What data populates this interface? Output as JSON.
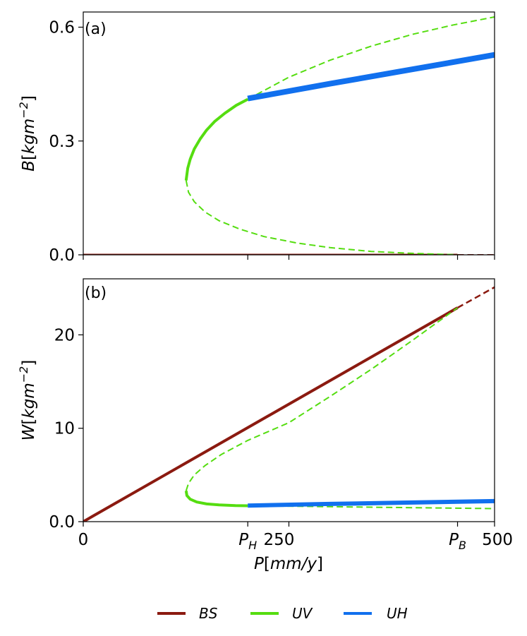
{
  "colors": {
    "BS": "#8b1a10",
    "UV": "#55dd10",
    "UH": "#1170ee"
  },
  "legend": [
    {
      "key": "BS",
      "label": "BS"
    },
    {
      "key": "UV",
      "label": "UV"
    },
    {
      "key": "UH",
      "label": "UH"
    }
  ],
  "chart_data": [
    {
      "type": "line",
      "panel_tag": "(a)",
      "ylabel_var": "B",
      "ylabel_unit": "kgm",
      "ylabel_exp": "−2",
      "xlim": [
        0,
        500
      ],
      "ylim": [
        0,
        0.64
      ],
      "yticks": [
        {
          "value": 0.0,
          "label": "0.0"
        },
        {
          "value": 0.3,
          "label": "0.3"
        },
        {
          "value": 0.6,
          "label": "0.6"
        }
      ],
      "show_xticklabels": false,
      "series": [
        {
          "name": "BS",
          "style": "solid",
          "width": 3,
          "x": [
            0,
            455
          ],
          "y": [
            0,
            0
          ]
        },
        {
          "name": "BS",
          "style": "dashed",
          "width": 2,
          "x": [
            455,
            500
          ],
          "y": [
            0,
            0
          ]
        },
        {
          "name": "UV",
          "style": "solid",
          "width": 4,
          "x": [
            125,
            127,
            130,
            135,
            142,
            150,
            160,
            172,
            186,
            200
          ],
          "y": [
            0.196,
            0.228,
            0.252,
            0.279,
            0.305,
            0.329,
            0.352,
            0.373,
            0.394,
            0.41
          ]
        },
        {
          "name": "UV",
          "style": "dashed",
          "width": 2,
          "x": [
            125,
            128,
            135,
            148,
            165,
            190,
            220,
            260,
            300,
            350,
            400,
            455
          ],
          "y": [
            0.196,
            0.165,
            0.14,
            0.113,
            0.09,
            0.068,
            0.048,
            0.031,
            0.019,
            0.009,
            0.004,
            0.0
          ]
        },
        {
          "name": "UV",
          "style": "dashed",
          "width": 2,
          "x": [
            200,
            250,
            300,
            350,
            400,
            450,
            500
          ],
          "y": [
            0.41,
            0.468,
            0.513,
            0.55,
            0.581,
            0.606,
            0.627
          ]
        },
        {
          "name": "UH",
          "style": "solid",
          "width": 8,
          "x": [
            200,
            300,
            400,
            500
          ],
          "y": [
            0.412,
            0.451,
            0.489,
            0.527
          ]
        }
      ]
    },
    {
      "type": "line",
      "panel_tag": "(b)",
      "ylabel_var": "W",
      "ylabel_unit": "kgm",
      "ylabel_exp": "−2",
      "xlim": [
        0,
        500
      ],
      "ylim": [
        0,
        26
      ],
      "yticks": [
        {
          "value": 0,
          "label": "0.0"
        },
        {
          "value": 10,
          "label": "10"
        },
        {
          "value": 20,
          "label": "20"
        }
      ],
      "xticks": [
        {
          "value": 0,
          "label": "0"
        },
        {
          "value": 200,
          "label": "P_H"
        },
        {
          "value": 250,
          "label": "250"
        },
        {
          "value": 455,
          "label": "P_B"
        },
        {
          "value": 500,
          "label": "500"
        }
      ],
      "xlabel_var": "P",
      "xlabel_unit": "mm/y",
      "series": [
        {
          "name": "BS",
          "style": "solid",
          "width": 4,
          "x": [
            0,
            455
          ],
          "y": [
            0,
            22.9
          ]
        },
        {
          "name": "BS",
          "style": "dashed",
          "width": 2.5,
          "x": [
            455,
            500
          ],
          "y": [
            22.9,
            25.1
          ]
        },
        {
          "name": "UV",
          "style": "solid",
          "width": 4,
          "x": [
            125,
            126,
            130,
            138,
            150,
            165,
            185,
            200
          ],
          "y": [
            3.3,
            2.8,
            2.4,
            2.1,
            1.9,
            1.8,
            1.72,
            1.7
          ]
        },
        {
          "name": "UV",
          "style": "dashed",
          "width": 2,
          "x": [
            125,
            128,
            135,
            148,
            168,
            200,
            250,
            300,
            350,
            400,
            455
          ],
          "y": [
            3.3,
            4.1,
            5.0,
            6.0,
            7.2,
            8.7,
            10.6,
            13.4,
            16.3,
            19.4,
            22.9
          ]
        },
        {
          "name": "UV",
          "style": "dashed",
          "width": 2,
          "x": [
            200,
            300,
            400,
            500
          ],
          "y": [
            1.7,
            1.6,
            1.5,
            1.4
          ]
        },
        {
          "name": "UH",
          "style": "solid",
          "width": 6,
          "x": [
            200,
            300,
            400,
            500
          ],
          "y": [
            1.72,
            1.9,
            2.05,
            2.2
          ]
        }
      ]
    }
  ]
}
